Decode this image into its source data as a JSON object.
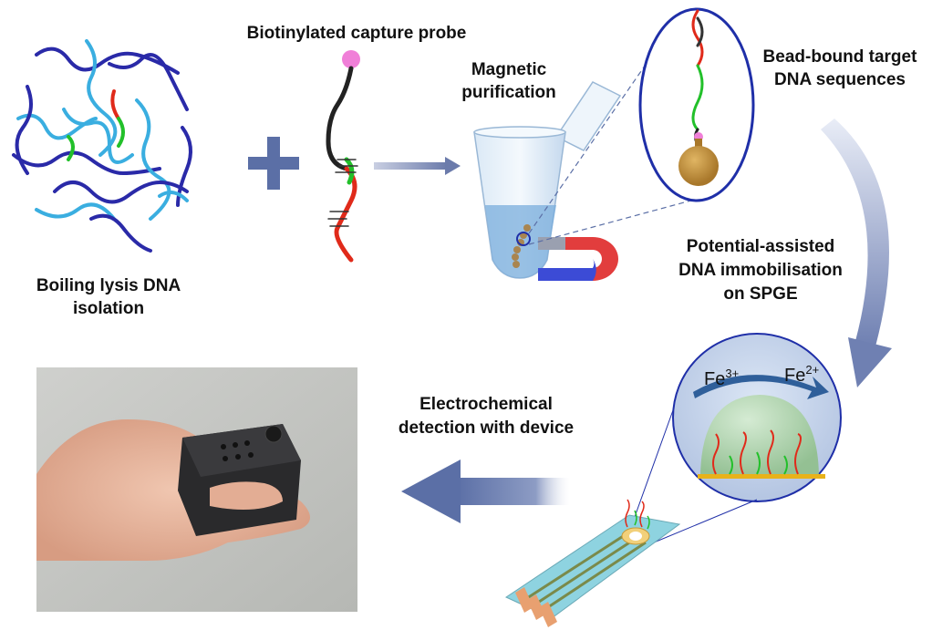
{
  "labels": {
    "step1_line1": "Boiling lysis DNA",
    "step1_line2": "isolation",
    "probe": "Biotinylated capture probe",
    "step2_line1": "Magnetic",
    "step2_line2": "purification",
    "step3_line1": "Bead-bound target",
    "step3_line2": "DNA sequences",
    "step4_line1": "Potential-assisted",
    "step4_line2": "DNA immobilisation",
    "step4_line3": "on SPGE",
    "step5_line1": "Electrochemical",
    "step5_line2": "detection with device"
  },
  "ions": {
    "fe3_base": "Fe",
    "fe3_charge": "3+",
    "fe2_base": "Fe",
    "fe2_charge": "2+"
  },
  "colors": {
    "dna_dark": "#2a2aa8",
    "dna_light": "#3aaee0",
    "target_red": "#e02a1a",
    "target_green": "#22c02a",
    "arrow_blue": "#5b6fa6",
    "bead_gold": "#c8963c",
    "biotin_pink": "#f07fd8"
  }
}
